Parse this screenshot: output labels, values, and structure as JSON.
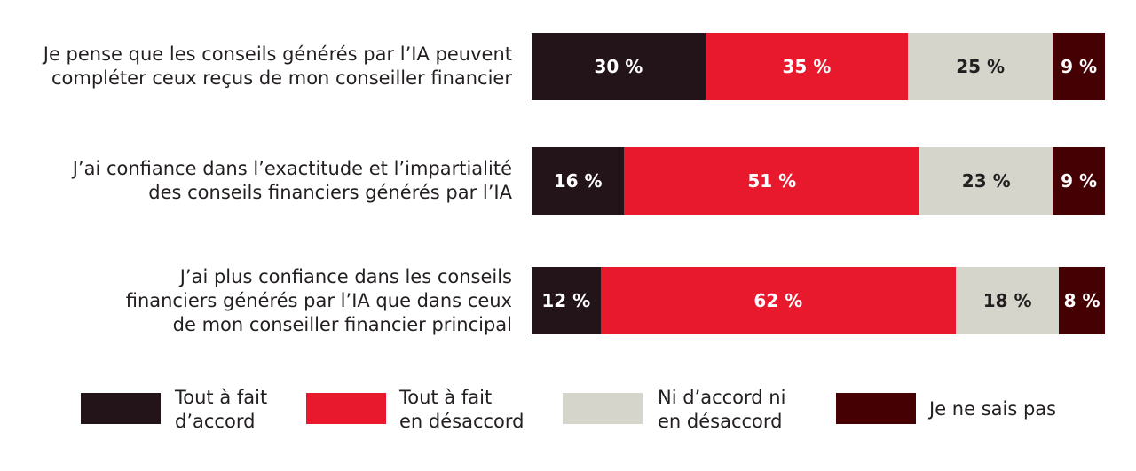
{
  "chart_data": {
    "type": "bar",
    "orientation": "horizontal",
    "stacked": true,
    "categories": [
      "Je pense que les conseils générés par l’IA peuvent compléter ceux reçus de mon conseiller financier",
      "J’ai confiance dans l’exactitude et l’impartialité des conseils financiers générés par l’IA",
      "J’ai plus confiance dans les conseils financiers générés par l’IA que dans ceux de mon conseiller financier principal"
    ],
    "category_lines": [
      [
        "Je pense que les conseils générés par l’IA peuvent",
        "compléter ceux reçus de mon conseiller financier"
      ],
      [
        "J’ai confiance dans l’exactitude et l’impartialité",
        "des conseils financiers générés par l’IA"
      ],
      [
        "J’ai plus confiance dans les conseils",
        "financiers générés par l’IA que dans ceux",
        "de mon conseiller financier principal"
      ]
    ],
    "series": [
      {
        "name": "Tout à fait d’accord",
        "legend_lines": [
          "Tout à fait",
          "d’accord"
        ],
        "color": "#231419",
        "text_color": "#ffffff",
        "values": [
          30,
          16,
          12
        ]
      },
      {
        "name": "Tout à fait en désaccord",
        "legend_lines": [
          "Tout à fait",
          "en désaccord"
        ],
        "color": "#e8192c",
        "text_color": "#ffffff",
        "values": [
          35,
          51,
          62
        ]
      },
      {
        "name": "Ni d’accord ni en désaccord",
        "legend_lines": [
          "Ni d’accord ni",
          "en désaccord"
        ],
        "color": "#d6d5cb",
        "text_color": "#231f20",
        "values": [
          25,
          23,
          18
        ]
      },
      {
        "name": "Je ne sais pas",
        "legend_lines": [
          "Je ne sais pas"
        ],
        "color": "#450003",
        "text_color": "#ffffff",
        "values": [
          9,
          9,
          8
        ]
      }
    ],
    "value_suffix": " %",
    "legend_position": "bottom",
    "grid": false
  }
}
